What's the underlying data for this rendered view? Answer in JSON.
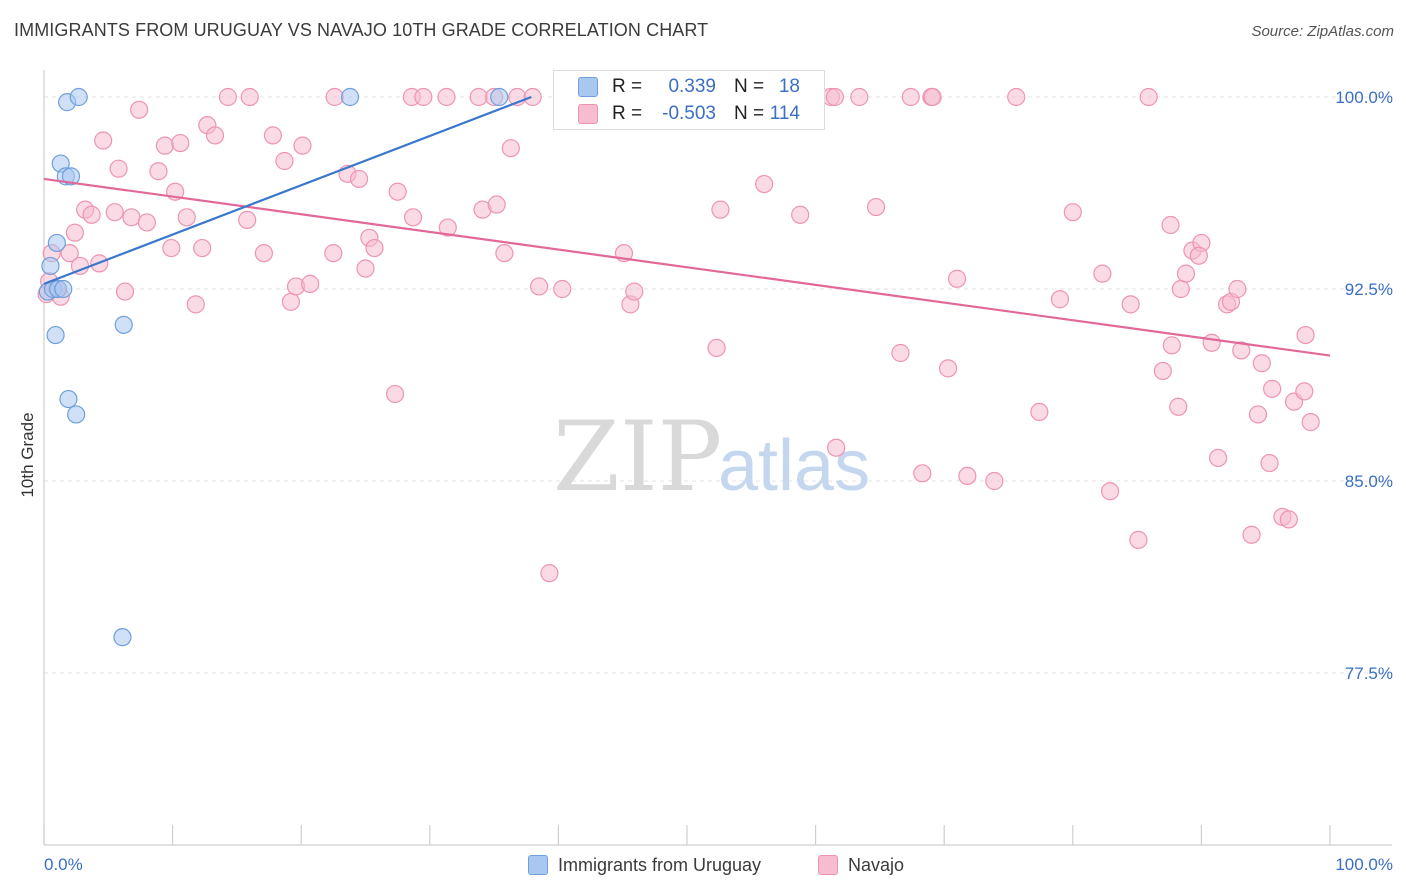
{
  "header": {
    "title": "IMMIGRANTS FROM URUGUAY VS NAVAJO 10TH GRADE CORRELATION CHART",
    "source": "Source: ZipAtlas.com"
  },
  "watermark": {
    "zip": "ZIP",
    "atlas": "atlas"
  },
  "stats_legend": {
    "rows": [
      {
        "r_label": "R =",
        "r_value": "0.339",
        "n_label": "N =",
        "n_value": "18"
      },
      {
        "r_label": "R =",
        "r_value": "-0.503",
        "n_label": "N =",
        "n_value": "114"
      }
    ]
  },
  "colors": {
    "uruguay_fill": "#a9c8f0",
    "uruguay_stroke": "#6f9fdd",
    "uruguay_line": "#3a78cc",
    "navajo_fill": "#f6bcd0",
    "navajo_stroke": "#ee94b2",
    "navajo_line": "#e2689a",
    "value_text": "#3a6fc4",
    "grid": "#e3e3e3"
  },
  "chart_data": {
    "type": "scatter",
    "title": "IMMIGRANTS FROM URUGUAY VS NAVAJO 10TH GRADE CORRELATION CHART",
    "xlabel": "",
    "ylabel": "10th Grade",
    "xlim": [
      0,
      100
    ],
    "ylim": [
      70.5,
      101.5
    ],
    "x_tick_labels": [
      "0.0%",
      "100.0%"
    ],
    "y_ticks": [
      {
        "value": 100.0,
        "label": "100.0%"
      },
      {
        "value": 92.5,
        "label": "92.5%"
      },
      {
        "value": 85.0,
        "label": "85.0%"
      },
      {
        "value": 77.5,
        "label": "77.5%"
      }
    ],
    "grid": true,
    "legend_position": "bottom-center",
    "series": [
      {
        "name": "Immigrants from Uruguay",
        "trend": {
          "x": [
            0.0,
            37.9
          ],
          "y": [
            92.7,
            100.0
          ]
        },
        "points": [
          [
            0.3,
            92.4
          ],
          [
            0.5,
            93.4
          ],
          [
            0.7,
            92.5
          ],
          [
            0.9,
            90.7
          ],
          [
            1.0,
            94.3
          ],
          [
            1.1,
            92.5
          ],
          [
            1.3,
            97.4
          ],
          [
            1.5,
            92.5
          ],
          [
            1.7,
            96.9
          ],
          [
            1.8,
            99.8
          ],
          [
            1.9,
            88.2
          ],
          [
            2.1,
            96.9
          ],
          [
            2.5,
            87.6
          ],
          [
            2.7,
            100.0
          ],
          [
            6.2,
            91.1
          ],
          [
            6.1,
            78.9
          ],
          [
            23.8,
            100.0
          ],
          [
            35.4,
            100.0
          ]
        ]
      },
      {
        "name": "Navajo",
        "trend": {
          "x": [
            0.0,
            100.0
          ],
          "y": [
            96.8,
            89.9
          ]
        },
        "points": [
          [
            0.2,
            92.3
          ],
          [
            0.4,
            92.8
          ],
          [
            0.6,
            93.9
          ],
          [
            1.0,
            92.5
          ],
          [
            1.3,
            92.2
          ],
          [
            2.0,
            93.9
          ],
          [
            2.4,
            94.7
          ],
          [
            2.8,
            93.4
          ],
          [
            3.2,
            95.6
          ],
          [
            3.7,
            95.4
          ],
          [
            4.3,
            93.5
          ],
          [
            4.6,
            98.3
          ],
          [
            5.5,
            95.5
          ],
          [
            5.8,
            97.2
          ],
          [
            6.3,
            92.4
          ],
          [
            6.8,
            95.3
          ],
          [
            7.4,
            99.5
          ],
          [
            8.0,
            95.1
          ],
          [
            8.9,
            97.1
          ],
          [
            9.4,
            98.1
          ],
          [
            9.9,
            94.1
          ],
          [
            10.2,
            96.3
          ],
          [
            10.6,
            98.2
          ],
          [
            11.1,
            95.3
          ],
          [
            11.8,
            91.9
          ],
          [
            12.3,
            94.1
          ],
          [
            12.7,
            98.9
          ],
          [
            13.3,
            98.5
          ],
          [
            14.3,
            100.0
          ],
          [
            15.8,
            95.2
          ],
          [
            16.0,
            100.0
          ],
          [
            17.1,
            93.9
          ],
          [
            17.8,
            98.5
          ],
          [
            18.7,
            97.5
          ],
          [
            19.2,
            92.0
          ],
          [
            19.6,
            92.6
          ],
          [
            20.1,
            98.1
          ],
          [
            20.7,
            92.7
          ],
          [
            22.6,
            100.0
          ],
          [
            22.5,
            93.9
          ],
          [
            23.6,
            97.0
          ],
          [
            24.5,
            96.8
          ],
          [
            25.0,
            93.3
          ],
          [
            25.3,
            94.5
          ],
          [
            25.7,
            94.1
          ],
          [
            27.3,
            88.4
          ],
          [
            27.5,
            96.3
          ],
          [
            28.6,
            100.0
          ],
          [
            28.7,
            95.3
          ],
          [
            29.5,
            100.0
          ],
          [
            31.3,
            100.0
          ],
          [
            31.4,
            94.9
          ],
          [
            33.8,
            100.0
          ],
          [
            34.1,
            95.6
          ],
          [
            35.0,
            100.0
          ],
          [
            35.2,
            95.8
          ],
          [
            35.8,
            93.9
          ],
          [
            36.3,
            98.0
          ],
          [
            36.8,
            100.0
          ],
          [
            38.0,
            100.0
          ],
          [
            38.5,
            92.6
          ],
          [
            39.3,
            81.4
          ],
          [
            40.3,
            92.5
          ],
          [
            45.1,
            93.9
          ],
          [
            45.6,
            91.9
          ],
          [
            45.9,
            92.4
          ],
          [
            52.3,
            90.2
          ],
          [
            52.6,
            95.6
          ],
          [
            52.4,
            100.0
          ],
          [
            56.0,
            96.6
          ],
          [
            58.8,
            95.4
          ],
          [
            61.2,
            100.0
          ],
          [
            61.5,
            100.0
          ],
          [
            61.6,
            86.3
          ],
          [
            63.4,
            100.0
          ],
          [
            64.7,
            95.7
          ],
          [
            66.6,
            90.0
          ],
          [
            67.4,
            100.0
          ],
          [
            68.3,
            85.3
          ],
          [
            69.0,
            100.0
          ],
          [
            69.1,
            100.0
          ],
          [
            70.3,
            89.4
          ],
          [
            71.0,
            92.9
          ],
          [
            71.8,
            85.2
          ],
          [
            73.9,
            85.0
          ],
          [
            75.6,
            100.0
          ],
          [
            77.4,
            87.7
          ],
          [
            79.0,
            92.1
          ],
          [
            80.0,
            95.5
          ],
          [
            82.3,
            93.1
          ],
          [
            82.9,
            84.6
          ],
          [
            84.5,
            91.9
          ],
          [
            85.1,
            82.7
          ],
          [
            85.9,
            100.0
          ],
          [
            87.0,
            89.3
          ],
          [
            87.7,
            90.3
          ],
          [
            88.2,
            87.9
          ],
          [
            87.6,
            95.0
          ],
          [
            88.4,
            92.5
          ],
          [
            88.8,
            93.1
          ],
          [
            89.3,
            94.0
          ],
          [
            90.0,
            94.3
          ],
          [
            89.8,
            93.8
          ],
          [
            90.8,
            90.4
          ],
          [
            91.3,
            85.9
          ],
          [
            92.0,
            91.9
          ],
          [
            92.3,
            92.0
          ],
          [
            92.8,
            92.5
          ],
          [
            93.1,
            90.1
          ],
          [
            93.9,
            82.9
          ],
          [
            94.4,
            87.6
          ],
          [
            94.7,
            89.6
          ],
          [
            95.5,
            88.6
          ],
          [
            95.3,
            85.7
          ],
          [
            96.3,
            83.6
          ],
          [
            96.8,
            83.5
          ],
          [
            97.2,
            88.1
          ],
          [
            98.0,
            88.5
          ],
          [
            98.5,
            87.3
          ],
          [
            98.1,
            90.7
          ]
        ]
      }
    ]
  }
}
